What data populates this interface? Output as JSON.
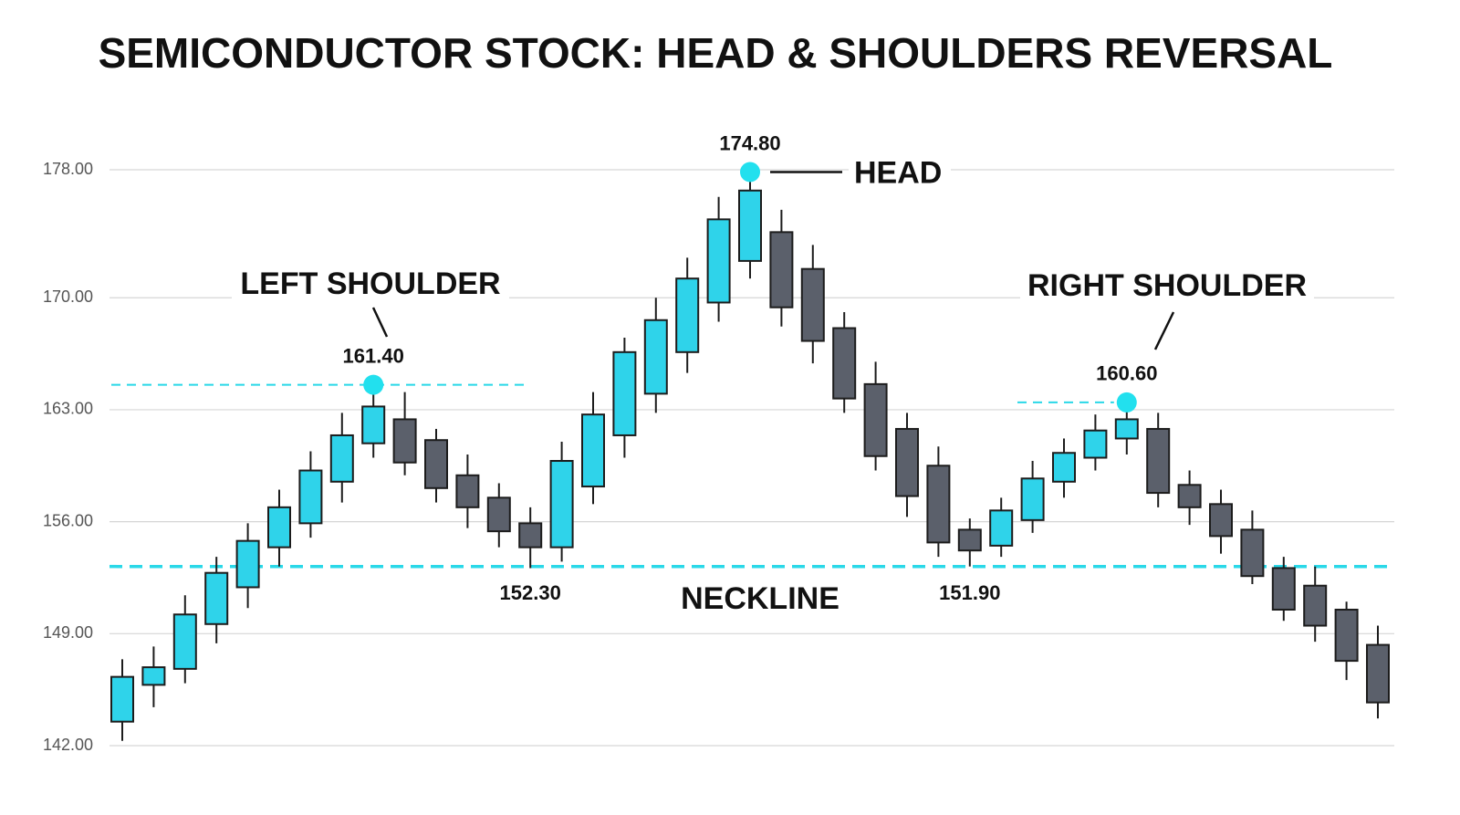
{
  "chart_data": {
    "type": "candlestick",
    "title": "SEMICONDUCTOR STOCK: HEAD & SHOULDERS REVERSAL",
    "open": [
      143.5,
      145.8,
      146.8,
      149.6,
      151.9,
      154.4,
      155.9,
      158.5,
      160.9,
      162.4,
      161.1,
      158.9,
      157.5,
      155.9,
      154.4,
      158.2,
      161.4,
      164.0,
      166.6,
      169.7,
      172.3,
      174.1,
      171.8,
      168.1,
      164.6,
      161.8,
      159.5,
      155.5,
      154.5,
      156.1,
      158.5,
      160.0,
      161.2,
      161.8,
      158.3,
      157.1,
      155.5,
      153.1,
      152.0,
      150.5,
      148.3
    ],
    "high": [
      147.4,
      148.2,
      151.4,
      153.8,
      155.9,
      158.0,
      160.4,
      162.8,
      164.1,
      164.1,
      161.8,
      160.2,
      158.4,
      156.9,
      161.0,
      164.1,
      167.5,
      170.0,
      172.5,
      176.3,
      177.4,
      175.5,
      173.3,
      169.1,
      166.0,
      162.8,
      160.7,
      156.2,
      157.5,
      159.8,
      161.2,
      162.7,
      163.0,
      162.8,
      159.2,
      158.0,
      156.7,
      153.8,
      153.2,
      151.0,
      149.5
    ],
    "low": [
      142.3,
      144.4,
      145.9,
      148.4,
      150.6,
      153.2,
      155.0,
      157.2,
      160.0,
      158.9,
      157.2,
      155.6,
      154.4,
      153.1,
      153.5,
      157.1,
      160.0,
      162.8,
      165.3,
      168.5,
      171.2,
      168.2,
      165.9,
      162.8,
      159.2,
      156.3,
      153.8,
      153.2,
      153.8,
      155.3,
      157.5,
      159.2,
      160.2,
      156.9,
      155.8,
      154.0,
      152.1,
      149.8,
      148.5,
      146.1,
      143.7
    ],
    "close": [
      146.3,
      146.9,
      150.2,
      152.8,
      154.8,
      156.9,
      159.2,
      161.4,
      163.2,
      159.7,
      158.1,
      156.9,
      155.4,
      154.4,
      159.8,
      162.7,
      166.6,
      168.6,
      171.2,
      174.9,
      176.7,
      169.4,
      167.3,
      163.7,
      160.1,
      157.6,
      154.7,
      154.2,
      156.7,
      158.7,
      160.3,
      161.7,
      162.4,
      157.8,
      156.9,
      155.1,
      152.6,
      150.5,
      149.5,
      147.3,
      144.7
    ],
    "up_color": "#2fd3ea",
    "down_color": "#5b606b",
    "ylim": [
      142,
      178
    ],
    "yticks": [
      {
        "value": 142,
        "label": "142.00"
      },
      {
        "value": 149,
        "label": "149.00"
      },
      {
        "value": 156,
        "label": "156.00"
      },
      {
        "value": 163,
        "label": "163.00"
      },
      {
        "value": 170,
        "label": "170.00"
      },
      {
        "value": 178,
        "label": "178.00"
      }
    ],
    "grid": true,
    "neckline": 153.2,
    "neckline_label": "NECKLINE",
    "annotations": {
      "left_shoulder": {
        "label": "LEFT SHOULDER",
        "price": "161.40"
      },
      "head": {
        "label": "HEAD",
        "price": "174.80"
      },
      "right_shoulder": {
        "label": "RIGHT SHOULDER",
        "price": "160.60"
      },
      "left_trough": {
        "price": "152.30"
      },
      "right_trough": {
        "price": "151.90"
      }
    }
  }
}
